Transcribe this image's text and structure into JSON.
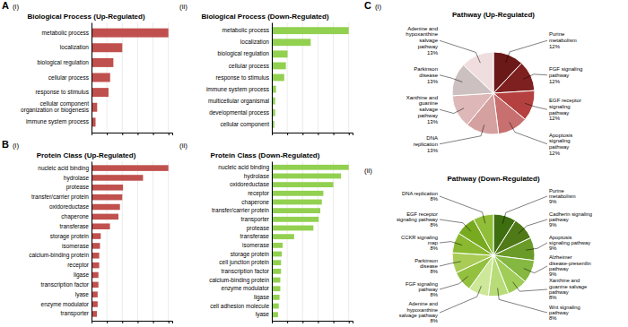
{
  "chart_data": [
    {
      "type": "bar",
      "orientation": "horizontal",
      "title": "Biological Process (Up-Regulated)",
      "annotations": [
        "A",
        "(i)"
      ],
      "categories": [
        "metabolic process",
        "localization",
        "biological regulation",
        "cellular process",
        "response to stimulus",
        "cellular component\norganization or biogenesis",
        "immune system process"
      ],
      "values": [
        95,
        38,
        27,
        23,
        21,
        7,
        5
      ],
      "color": "#c0504d",
      "xlim": [
        0,
        99.75
      ],
      "xticks": [
        0,
        19,
        38,
        57,
        76,
        95
      ],
      "grid": true,
      "tick_labels": "y"
    },
    {
      "type": "bar",
      "orientation": "horizontal",
      "title": "Biological Process (Down-Regulated)",
      "annotations": [
        "(ii)"
      ],
      "categories": [
        "metabolic process",
        "localization",
        "biological regulation",
        "cellular process",
        "response to stimulus",
        "immune system process",
        "multicellular organismal",
        "developmental process",
        "cellular component"
      ],
      "values": [
        93,
        47,
        19,
        17,
        15,
        5,
        4,
        4,
        3
      ],
      "color": "#92d050",
      "xlim": [
        0,
        97.65
      ],
      "xticks": [
        0,
        18.6,
        37.2,
        55.8,
        74.4,
        93
      ],
      "grid": true,
      "tick_labels": "y"
    },
    {
      "type": "bar",
      "orientation": "horizontal",
      "title": "Protein Class (Up-Regulated)",
      "annotations": [
        "B",
        "(i)"
      ],
      "categories": [
        "nucleic acid binding",
        "hydrolase",
        "protease",
        "transfer/carrier protein",
        "oxidoreductase",
        "chaperone",
        "transferase",
        "storage protein",
        "isomerase",
        "calcium-binding protein",
        "receptor",
        "ligase",
        "transcription factor",
        "lyase",
        "enzyme modulator",
        "transporter"
      ],
      "values": [
        100,
        67,
        41,
        40,
        37,
        35,
        24,
        12,
        11,
        10,
        10,
        9,
        9,
        8,
        8,
        7
      ],
      "color": "#c0504d",
      "xlim": [
        0,
        105
      ],
      "xticks": [
        0,
        20,
        40,
        60,
        80,
        100
      ],
      "grid": true,
      "tick_labels": "y"
    },
    {
      "type": "bar",
      "orientation": "horizontal",
      "title": "Protein Class (Down-Regulated)",
      "annotations": [
        "(ii)"
      ],
      "categories": [
        "nucleic acid binding",
        "hydrolase",
        "oxidoreductase",
        "receptor",
        "chaperone",
        "transfer/carrier protein",
        "transporter",
        "protease",
        "transferase",
        "isomerase",
        "storage protein",
        "cell junction protein",
        "transcription factor",
        "calcium-binding protein",
        "enzyme modulator",
        "ligase",
        "cell adhesion molecule",
        "lyase"
      ],
      "values": [
        100,
        90,
        80,
        67,
        65,
        63,
        61,
        54,
        29,
        14,
        13,
        12,
        12,
        11,
        11,
        10,
        9,
        8
      ],
      "color": "#92d050",
      "xlim": [
        0,
        105
      ],
      "xticks": [
        0,
        20,
        40,
        60,
        80,
        100
      ],
      "grid": true,
      "tick_labels": "y"
    },
    {
      "type": "pie",
      "title": "Pathway (Up-Regulated)",
      "annotations": [
        "C",
        "(i)"
      ],
      "categories": [
        "Purine\nmetabolism",
        "FGF signaling\npathway",
        "EGF receptor\nsignaling\npathway",
        "Apoptosis\nsignaling\npathway",
        "DNA\nreplication",
        "Xanthine and\nguanine\nsalvage\npathway",
        "Parkinson\ndisease",
        "Adenine and\nhypoxanthine\nsalvage\npathway"
      ],
      "values": [
        12,
        12,
        12,
        12,
        13,
        13,
        13,
        13
      ],
      "value_labels": [
        "12%",
        "12%",
        "12%",
        "12%",
        "13%",
        "13%",
        "13%",
        "13%"
      ],
      "colors": [
        "#6b1818",
        "#7f2020",
        "#b54040",
        "#c87070",
        "#d4a0a0",
        "#deb8b8",
        "#ccc0c0",
        "#f0dede"
      ],
      "data_labels": true
    },
    {
      "type": "pie",
      "title": "Pathway (Down-Regulated)",
      "annotations": [
        "(ii)"
      ],
      "categories": [
        "Purine\nmetabolism",
        "Cadherin signaling\npathway",
        "Apoptosis\nsignaling pathway",
        "Alzheimer\ndisease-presenilin\npathway",
        "Xanthine and\nguanine salvage\npathway",
        "Wnt signaling\npathway",
        "Adenine and\nhypoxanthine\nsalvage pathway",
        "FGF signaling\npathway",
        "Parkinson\ndisease",
        "CCKR signaling\nmap",
        "EGF receptor\nsignaling pathway",
        "DNA replication"
      ],
      "values": [
        9,
        9,
        9,
        9,
        8,
        8,
        8,
        8,
        8,
        8,
        8,
        8
      ],
      "value_labels": [
        "9%",
        "9%",
        "9%",
        "9%",
        "8%",
        "8%",
        "8%",
        "8%",
        "8%",
        "8%",
        "8%",
        "8%"
      ],
      "colors": [
        "#3d6e10",
        "#507a18",
        "#6a9a28",
        "#84b840",
        "#a0cc58",
        "#b8dc78",
        "#cce898",
        "#94c040",
        "#a8cc55",
        "#8ab830",
        "#78aa20",
        "#90be38"
      ],
      "data_labels": true
    }
  ]
}
